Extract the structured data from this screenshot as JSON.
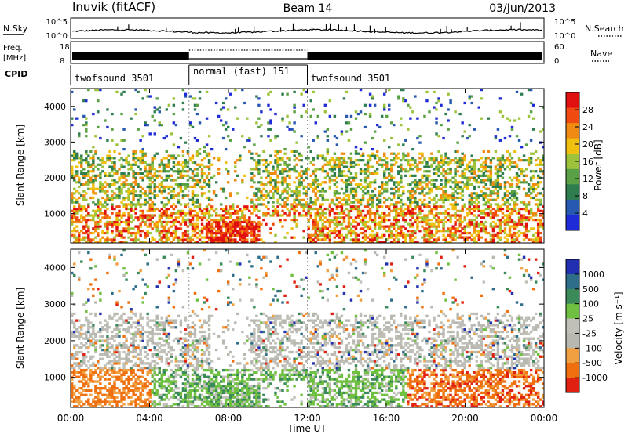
{
  "header": {
    "station": "Inuvik (fitACF)",
    "beam": "Beam 14",
    "date": "03/Jun/2013"
  },
  "top_panels": {
    "nsky_label": "N.Sky",
    "nsearch_label": "N.Search",
    "noise_ticks_left": [
      "10^5",
      "10^0"
    ],
    "noise_ticks_right": [
      "10^5",
      "10^0"
    ],
    "freq_label_line1": "Freq.",
    "freq_label_line2": "[MHz]",
    "freq_ticks": [
      "18",
      "8"
    ],
    "nave_label": "Nave",
    "nave_ticks": [
      "60",
      "0"
    ],
    "cpid_label": "CPID",
    "cpid_segments": [
      {
        "label": "twofsound 3501",
        "start_hour": 0,
        "end_hour": 6
      },
      {
        "label": "normal (fast) 151",
        "start_hour": 6,
        "end_hour": 12
      },
      {
        "label": "twofsound 3501",
        "start_hour": 12,
        "end_hour": 24
      }
    ]
  },
  "colors": {
    "power": [
      "#1f2bd6",
      "#2859b0",
      "#2e7d4f",
      "#5aa044",
      "#9dc33a",
      "#f0c010",
      "#f08a10",
      "#f04a10",
      "#e01010"
    ],
    "velocity": [
      "#2030b0",
      "#2e6e8a",
      "#3a8a5a",
      "#6fc040",
      "#c0c0b8",
      "#b8b8b0",
      "#f0a040",
      "#f07010",
      "#e02010"
    ]
  },
  "chart_data": [
    {
      "type": "heatmap",
      "title": "",
      "xlabel": "",
      "ylabel": "Slant Range [km]",
      "xlim": [
        0,
        24
      ],
      "ylim": [
        180,
        4500
      ],
      "x_tick_labels": [
        "00:00",
        "04:00",
        "08:00",
        "12:00",
        "16:00",
        "20:00",
        "00:00"
      ],
      "y_tick_values": [
        1000,
        2000,
        3000,
        4000
      ],
      "colorbar": {
        "label": "Power [dB]",
        "tick_labels": [
          "4",
          "8",
          "12",
          "16",
          "20",
          "24",
          "28"
        ],
        "range": [
          0,
          30
        ]
      }
    },
    {
      "type": "heatmap",
      "title": "",
      "xlabel": "Time UT",
      "ylabel": "Slant Range [km]",
      "xlim": [
        0,
        24
      ],
      "ylim": [
        180,
        4500
      ],
      "x_tick_labels": [
        "00:00",
        "04:00",
        "08:00",
        "12:00",
        "16:00",
        "20:00",
        "00:00"
      ],
      "y_tick_values": [
        1000,
        2000,
        3000,
        4000
      ],
      "colorbar": {
        "label": "Velocity [m s⁻¹]",
        "tick_labels": [
          "1000",
          "500",
          "100",
          "25",
          "-25",
          "-100",
          "-500",
          "-1000"
        ]
      }
    }
  ]
}
